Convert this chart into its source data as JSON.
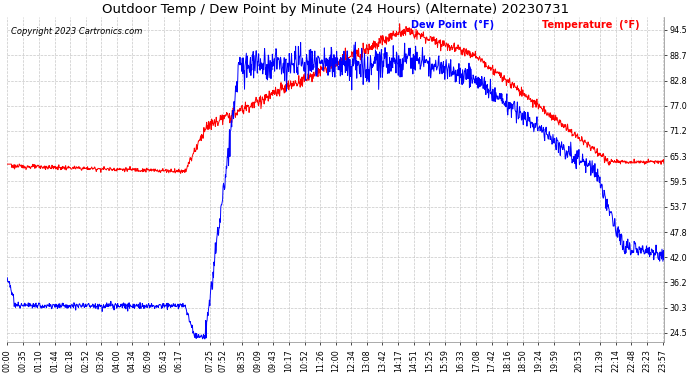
{
  "title": "Outdoor Temp / Dew Point by Minute (24 Hours) (Alternate) 20230731",
  "copyright": "Copyright 2023 Cartronics.com",
  "legend_dew": "Dew Point  (°F)",
  "legend_temp": "Temperature  (°F)",
  "dew_color": "blue",
  "temp_color": "red",
  "bg_color": "#ffffff",
  "plot_bg": "#ffffff",
  "grid_color": "#c8c8c8",
  "yticks": [
    24.5,
    30.3,
    36.2,
    42.0,
    47.8,
    53.7,
    59.5,
    65.3,
    71.2,
    77.0,
    82.8,
    88.7,
    94.5
  ],
  "ylim": [
    22.5,
    97.5
  ],
  "title_fontsize": 9.5,
  "tick_fontsize": 5.8,
  "copyright_fontsize": 6.0,
  "legend_fontsize": 7.0,
  "xtick_labels": [
    "00:00",
    "00:35",
    "01:10",
    "01:44",
    "02:18",
    "02:52",
    "03:26",
    "04:00",
    "04:34",
    "05:09",
    "05:43",
    "06:17",
    "07:25",
    "07:52",
    "08:35",
    "09:09",
    "09:43",
    "10:17",
    "10:52",
    "11:26",
    "12:00",
    "12:34",
    "13:08",
    "13:42",
    "14:17",
    "14:51",
    "15:25",
    "15:59",
    "16:33",
    "17:08",
    "17:42",
    "18:16",
    "18:50",
    "19:24",
    "19:59",
    "20:53",
    "21:39",
    "22:14",
    "22:48",
    "23:23",
    "23:57"
  ]
}
